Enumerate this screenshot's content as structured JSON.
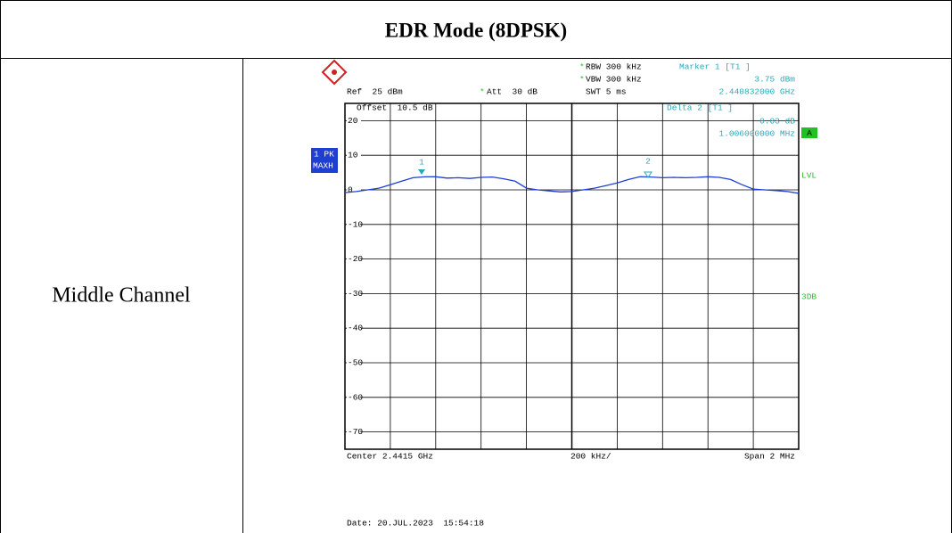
{
  "header": {
    "title": "EDR Mode (8DPSK)"
  },
  "row": {
    "label": "Middle Channel"
  },
  "screen": {
    "ref": "Ref  25 dBm",
    "stars": [
      "*",
      "*",
      "*"
    ],
    "att": "Att  30 dB",
    "rbw": "RBW 300 kHz",
    "vbw": "VBW 300 kHz",
    "swt": "SWT 5 ms",
    "marker1": {
      "title": "Marker 1 [T1 ]",
      "level": "3.75 dBm",
      "freq": "2.440832000 GHz"
    },
    "offset": "Offset  10.5 dB",
    "delta2": {
      "title": "Delta 2 [T1 ]",
      "level": "0.03 dB",
      "freq": "1.006000000 MHz"
    },
    "trace_mode": [
      "1 PK",
      "MAXH"
    ],
    "flag": "A",
    "lvl": "LVL",
    "db3": "3DB",
    "center": "Center 2.4415 GHz",
    "div": "200 kHz/",
    "span": "Span 2 MHz",
    "date": "Date: 20.JUL.2023  15:54:18",
    "marker_labels": [
      "1",
      "2"
    ],
    "ylim": [
      -75,
      25
    ],
    "yticks": [
      20,
      10,
      0,
      -10,
      -20,
      -30,
      -40,
      -50,
      -60,
      -70
    ],
    "trace": [
      -0.8,
      -0.5,
      0,
      0.5,
      1.5,
      2.5,
      3.5,
      3.75,
      3.8,
      3.4,
      3.5,
      3.3,
      3.6,
      3.7,
      3.2,
      2.5,
      0.5,
      0,
      -0.3,
      -0.6,
      -0.5,
      0,
      0.5,
      1.2,
      2,
      3,
      3.8,
      3.7,
      3.5,
      3.6,
      3.5,
      3.6,
      3.8,
      3.6,
      3,
      1.5,
      0.2,
      0,
      -0.2,
      -0.5,
      -1
    ]
  }
}
